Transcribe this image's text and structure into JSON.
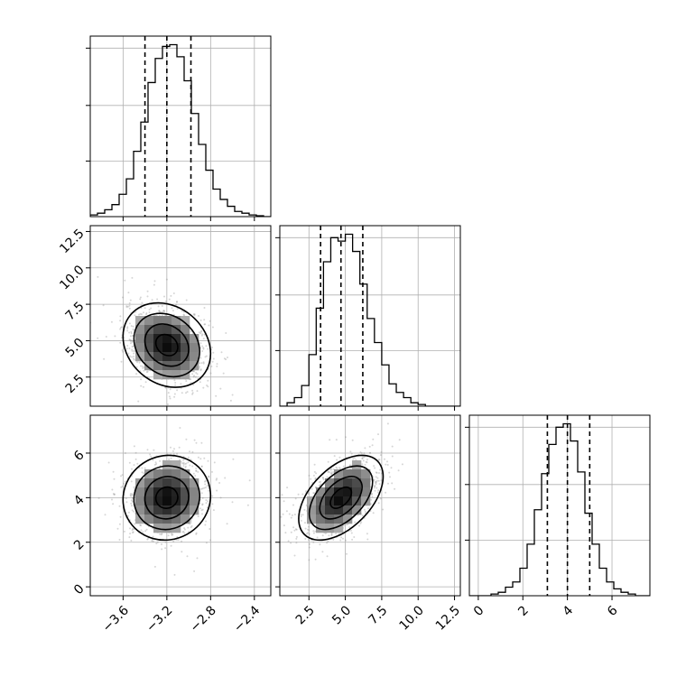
{
  "chart_data": {
    "type": "corner",
    "grid": true,
    "quantiles": [
      0.16,
      0.5,
      0.84
    ],
    "parameters": [
      {
        "ticks": [
          -3.6,
          -3.2,
          -2.8,
          -2.4
        ],
        "tick_labels": [
          "−3.6",
          "−3.2",
          "−2.8",
          "−2.4"
        ],
        "range": [
          -3.9,
          -2.25
        ],
        "quantile_values": [
          -3.4,
          -3.2,
          -2.98
        ],
        "mean": -3.2,
        "std": 0.2
      },
      {
        "ticks": [
          2.5,
          5.0,
          7.5,
          10.0,
          12.5
        ],
        "tick_labels": [
          "2.5",
          "5.0",
          "7.5",
          "10.0",
          "12.5"
        ],
        "range": [
          0.5,
          12.9
        ],
        "quantile_values": [
          3.3,
          4.7,
          6.2
        ],
        "mean": 4.7,
        "std": 1.45
      },
      {
        "ticks": [
          0,
          2,
          4,
          6
        ],
        "tick_labels": [
          "0",
          "2",
          "4",
          "6"
        ],
        "range": [
          -0.4,
          7.7
        ],
        "quantile_values": [
          3.1,
          4.0,
          5.0
        ],
        "mean": 4.0,
        "std": 0.95
      }
    ],
    "histograms": [
      {
        "param": 0,
        "bin_edges_start": -3.9,
        "bin_width": 0.066,
        "counts": [
          0.01,
          0.02,
          0.04,
          0.07,
          0.13,
          0.22,
          0.38,
          0.55,
          0.78,
          0.92,
          0.99,
          1.0,
          0.93,
          0.79,
          0.6,
          0.42,
          0.27,
          0.16,
          0.1,
          0.06,
          0.03,
          0.02,
          0.01,
          0.005,
          0.0
        ]
      },
      {
        "param": 1,
        "bin_edges_start": 0.5,
        "bin_width": 0.5,
        "counts": [
          0.0,
          0.02,
          0.05,
          0.12,
          0.3,
          0.57,
          0.84,
          0.98,
          0.96,
          1.0,
          0.9,
          0.71,
          0.51,
          0.37,
          0.24,
          0.13,
          0.08,
          0.05,
          0.02,
          0.01,
          0.0,
          0.0,
          0.0,
          0.0,
          0.0
        ]
      },
      {
        "param": 2,
        "bin_edges_start": -0.4,
        "bin_width": 0.324,
        "counts": [
          0.0,
          0.0,
          0.0,
          0.01,
          0.02,
          0.05,
          0.08,
          0.16,
          0.3,
          0.5,
          0.71,
          0.88,
          0.98,
          1.0,
          0.9,
          0.72,
          0.48,
          0.3,
          0.16,
          0.08,
          0.04,
          0.02,
          0.01,
          0.0,
          0.0
        ]
      }
    ],
    "pairs": [
      {
        "x_param": 0,
        "y_param": 1,
        "correlation": -0.2
      },
      {
        "x_param": 0,
        "y_param": 2,
        "correlation": 0.05
      },
      {
        "x_param": 1,
        "y_param": 2,
        "correlation": 0.5
      }
    ]
  }
}
